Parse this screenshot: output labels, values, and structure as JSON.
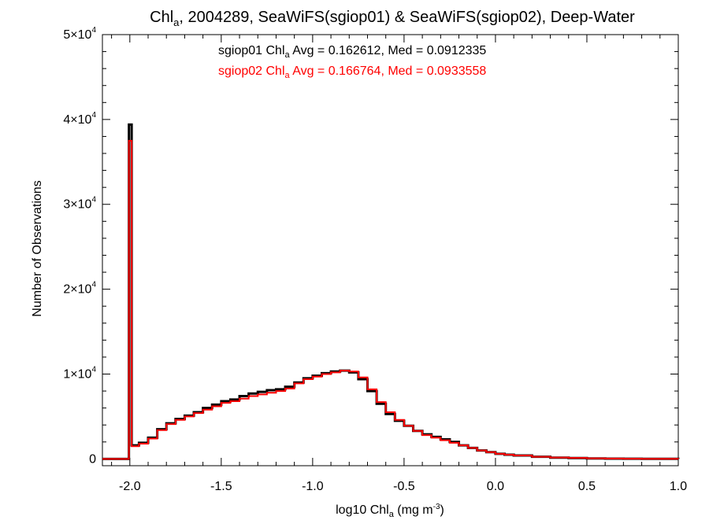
{
  "chart_data": {
    "type": "line",
    "step": true,
    "title": {
      "main": "Chl",
      "sub": "a",
      "rest": ", 2004289, SeaWiFS(sgiop01) & SeaWiFS(sgiop02), Deep-Water"
    },
    "xlabel": {
      "main": "log10 Chl",
      "sub": "a",
      "rest": " (mg m",
      "sup": "-3",
      "end": ")"
    },
    "ylabel": "Number of Observations",
    "xlim": [
      -2.15,
      1.0
    ],
    "ylim": [
      -800,
      50000
    ],
    "xticks": [
      {
        "value": -2.0,
        "label": "-2.0"
      },
      {
        "value": -1.5,
        "label": "-1.5"
      },
      {
        "value": -1.0,
        "label": "-1.0"
      },
      {
        "value": -0.5,
        "label": "-0.5"
      },
      {
        "value": 0.0,
        "label": "0.0"
      },
      {
        "value": 0.5,
        "label": "0.5"
      },
      {
        "value": 1.0,
        "label": "1.0"
      }
    ],
    "yticks": [
      {
        "value": 0,
        "mant": "0",
        "exp": ""
      },
      {
        "value": 10000,
        "mant": "1×10",
        "exp": "4"
      },
      {
        "value": 20000,
        "mant": "2×10",
        "exp": "4"
      },
      {
        "value": 30000,
        "mant": "3×10",
        "exp": "4"
      },
      {
        "value": 40000,
        "mant": "4×10",
        "exp": "4"
      },
      {
        "value": 50000,
        "mant": "5×10",
        "exp": "4"
      }
    ],
    "annotations": [
      {
        "color": "#000000",
        "pre": "sgiop01 Chl",
        "sub": "a",
        "post": " Avg = 0.162612, Med = 0.0912335"
      },
      {
        "color": "#ff0000",
        "pre": "sgiop02 Chl",
        "sub": "a",
        "post": " Avg = 0.166764, Med = 0.0933558"
      }
    ],
    "series": [
      {
        "color": "#000000",
        "x": [
          -2.15,
          -2.01,
          -2.005,
          -1.99,
          -1.95,
          -1.9,
          -1.85,
          -1.8,
          -1.75,
          -1.7,
          -1.65,
          -1.6,
          -1.55,
          -1.5,
          -1.45,
          -1.4,
          -1.35,
          -1.3,
          -1.25,
          -1.2,
          -1.15,
          -1.1,
          -1.05,
          -1.0,
          -0.95,
          -0.9,
          -0.85,
          -0.8,
          -0.75,
          -0.7,
          -0.65,
          -0.6,
          -0.55,
          -0.5,
          -0.45,
          -0.4,
          -0.35,
          -0.3,
          -0.25,
          -0.2,
          -0.15,
          -0.1,
          -0.05,
          0.0,
          0.05,
          0.1,
          0.2,
          0.3,
          0.4,
          0.5,
          0.6,
          0.7,
          0.8,
          0.9,
          1.0
        ],
        "y": [
          0,
          0,
          39400,
          1600,
          1900,
          2500,
          3500,
          4200,
          4700,
          5100,
          5500,
          6000,
          6400,
          6800,
          7000,
          7400,
          7700,
          7900,
          8100,
          8200,
          8500,
          9000,
          9500,
          9800,
          10100,
          10300,
          10400,
          10200,
          9400,
          8000,
          6500,
          5300,
          4500,
          3900,
          3300,
          2900,
          2600,
          2300,
          2000,
          1600,
          1300,
          1000,
          800,
          600,
          500,
          400,
          250,
          150,
          100,
          60,
          40,
          20,
          15,
          10,
          5
        ]
      },
      {
        "color": "#ff0000",
        "x": [
          -2.15,
          -2.01,
          -2.005,
          -1.99,
          -1.95,
          -1.9,
          -1.85,
          -1.8,
          -1.75,
          -1.7,
          -1.65,
          -1.6,
          -1.55,
          -1.5,
          -1.45,
          -1.4,
          -1.35,
          -1.3,
          -1.25,
          -1.2,
          -1.15,
          -1.1,
          -1.05,
          -1.0,
          -0.95,
          -0.9,
          -0.85,
          -0.8,
          -0.75,
          -0.7,
          -0.65,
          -0.6,
          -0.55,
          -0.5,
          -0.45,
          -0.4,
          -0.35,
          -0.3,
          -0.25,
          -0.2,
          -0.15,
          -0.1,
          -0.05,
          0.0,
          0.05,
          0.1,
          0.2,
          0.3,
          0.4,
          0.5,
          0.6,
          0.7,
          0.8,
          0.9,
          1.0
        ],
        "y": [
          0,
          0,
          37500,
          1500,
          1800,
          2400,
          3400,
          4100,
          4600,
          5000,
          5400,
          5800,
          6200,
          6600,
          6800,
          7100,
          7400,
          7600,
          7800,
          8000,
          8300,
          8900,
          9400,
          9700,
          10000,
          10200,
          10400,
          10300,
          9600,
          8200,
          6700,
          5500,
          4600,
          3900,
          3300,
          2800,
          2500,
          2200,
          1900,
          1600,
          1300,
          1000,
          800,
          600,
          500,
          400,
          260,
          160,
          110,
          70,
          45,
          25,
          15,
          10,
          5
        ]
      }
    ]
  }
}
